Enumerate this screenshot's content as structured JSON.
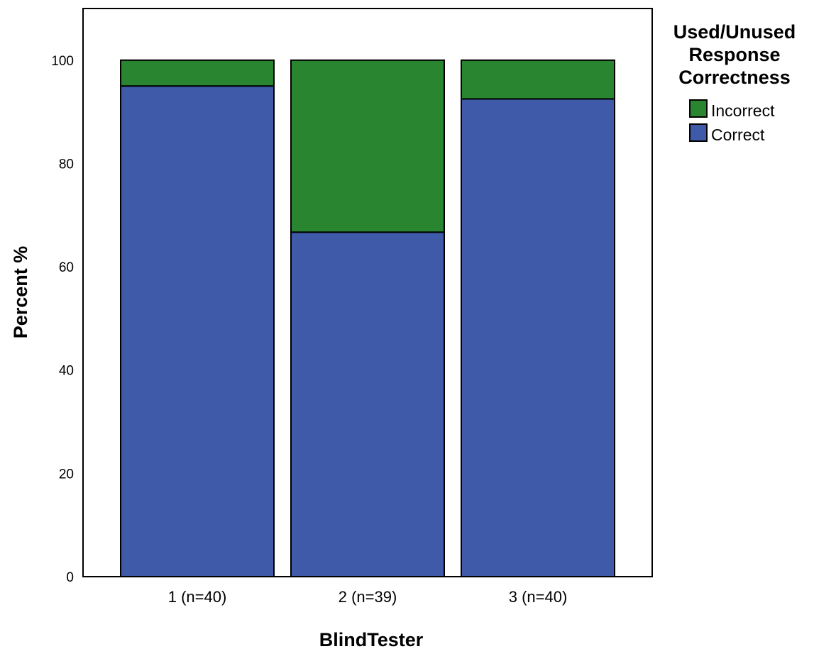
{
  "chart_data": {
    "type": "bar",
    "stacked": true,
    "title": "",
    "xlabel": "BlindTester",
    "ylabel": "Percent %",
    "ylim": [
      0,
      110
    ],
    "yticks": [
      0,
      20,
      40,
      60,
      80,
      100
    ],
    "categories": [
      "1 (n=40)",
      "2 (n=39)",
      "3 (n=40)"
    ],
    "series": [
      {
        "name": "Correct",
        "color": "#3e5aa8",
        "values": [
          95.0,
          66.7,
          92.5
        ]
      },
      {
        "name": "Incorrect",
        "color": "#2a8530",
        "values": [
          5.0,
          33.3,
          7.5
        ]
      }
    ],
    "grid": false,
    "legend": {
      "title_lines": [
        "Used/Unused",
        "Response",
        "Correctness"
      ],
      "placement": "right",
      "items": [
        "Incorrect",
        "Correct"
      ]
    }
  }
}
